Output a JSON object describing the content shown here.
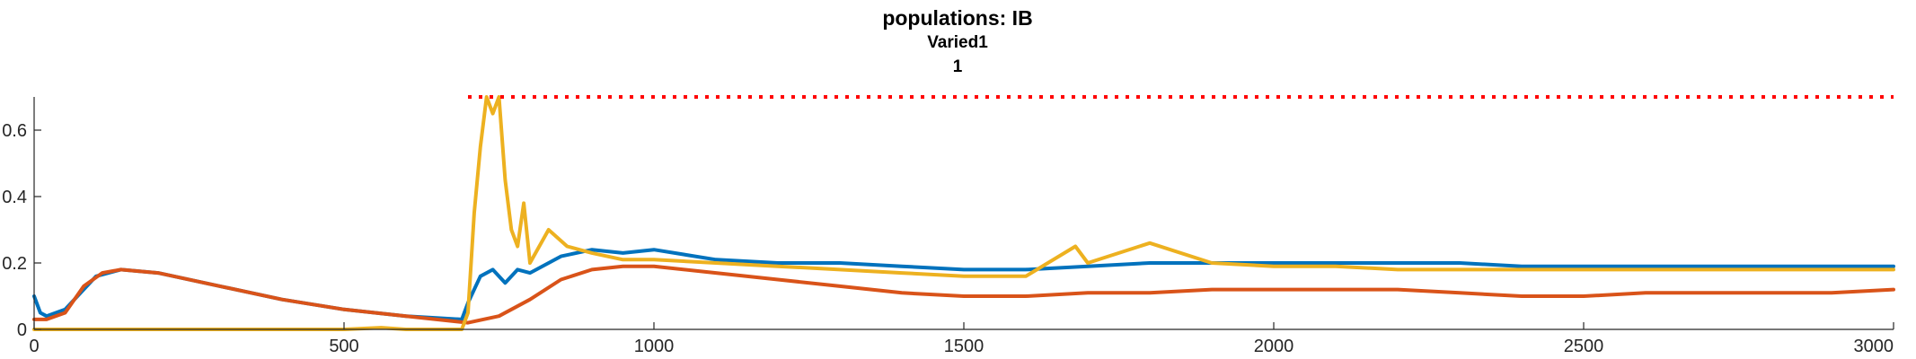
{
  "chart_data": {
    "type": "line",
    "title": "populations: IB",
    "subtitle_lines": [
      "Varied1",
      "1"
    ],
    "xlabel": "",
    "ylabel": "",
    "xlim": [
      0,
      3000
    ],
    "ylim": [
      0,
      0.7
    ],
    "x_ticks": [
      0,
      500,
      1000,
      1500,
      2000,
      2500,
      3000
    ],
    "x_tick_labels": [
      "0",
      "500",
      "1000",
      "1500",
      "2000",
      "2500",
      "3000"
    ],
    "y_ticks": [
      0,
      0.2,
      0.4,
      0.6
    ],
    "y_tick_labels": [
      "0",
      "0.2",
      "0.4",
      "0.6"
    ],
    "grid": false,
    "legend": "none",
    "series": [
      {
        "color": "#0072BD",
        "style": "solid",
        "x": [
          0,
          10,
          20,
          50,
          100,
          140,
          200,
          300,
          400,
          500,
          600,
          690,
          700,
          720,
          740,
          760,
          780,
          800,
          850,
          900,
          950,
          1000,
          1100,
          1200,
          1300,
          1400,
          1500,
          1600,
          1700,
          1800,
          1900,
          2000,
          2100,
          2200,
          2300,
          2400,
          2500,
          2600,
          2700,
          2800,
          2900,
          3000
        ],
        "y": [
          0.1,
          0.05,
          0.04,
          0.06,
          0.16,
          0.18,
          0.17,
          0.13,
          0.09,
          0.06,
          0.04,
          0.03,
          0.08,
          0.16,
          0.18,
          0.14,
          0.18,
          0.17,
          0.22,
          0.24,
          0.23,
          0.24,
          0.21,
          0.2,
          0.2,
          0.19,
          0.18,
          0.18,
          0.19,
          0.2,
          0.2,
          0.2,
          0.2,
          0.2,
          0.2,
          0.19,
          0.19,
          0.19,
          0.19,
          0.19,
          0.19,
          0.19
        ]
      },
      {
        "color": "#D95319",
        "style": "solid",
        "x": [
          0,
          20,
          50,
          80,
          110,
          140,
          200,
          300,
          400,
          500,
          600,
          700,
          750,
          800,
          850,
          900,
          950,
          1000,
          1100,
          1200,
          1300,
          1400,
          1500,
          1600,
          1700,
          1800,
          1900,
          2000,
          2100,
          2200,
          2300,
          2400,
          2500,
          2600,
          2700,
          2800,
          2900,
          3000
        ],
        "y": [
          0.03,
          0.03,
          0.05,
          0.13,
          0.17,
          0.18,
          0.17,
          0.13,
          0.09,
          0.06,
          0.04,
          0.02,
          0.04,
          0.09,
          0.15,
          0.18,
          0.19,
          0.19,
          0.17,
          0.15,
          0.13,
          0.11,
          0.1,
          0.1,
          0.11,
          0.11,
          0.12,
          0.12,
          0.12,
          0.12,
          0.11,
          0.1,
          0.1,
          0.11,
          0.11,
          0.11,
          0.11,
          0.12
        ]
      },
      {
        "color": "#EDB120",
        "style": "solid",
        "x": [
          0,
          100,
          200,
          300,
          400,
          500,
          560,
          600,
          690,
          700,
          710,
          720,
          730,
          740,
          750,
          760,
          770,
          780,
          790,
          800,
          830,
          860,
          900,
          950,
          1000,
          1100,
          1200,
          1300,
          1400,
          1500,
          1600,
          1680,
          1700,
          1800,
          1900,
          2000,
          2100,
          2200,
          2300,
          2400,
          2500,
          2600,
          2700,
          2800,
          2900,
          3000
        ],
        "y": [
          0,
          0,
          0,
          0,
          0,
          0,
          0.005,
          0,
          0,
          0.05,
          0.35,
          0.55,
          0.7,
          0.65,
          0.7,
          0.45,
          0.3,
          0.25,
          0.38,
          0.2,
          0.3,
          0.25,
          0.23,
          0.21,
          0.21,
          0.2,
          0.19,
          0.18,
          0.17,
          0.16,
          0.16,
          0.25,
          0.2,
          0.26,
          0.2,
          0.19,
          0.19,
          0.18,
          0.18,
          0.18,
          0.18,
          0.18,
          0.18,
          0.18,
          0.18,
          0.18
        ]
      },
      {
        "color": "#FF0000",
        "style": "dotted",
        "x": [
          700,
          3000
        ],
        "y": [
          0.7,
          0.7
        ]
      }
    ]
  }
}
